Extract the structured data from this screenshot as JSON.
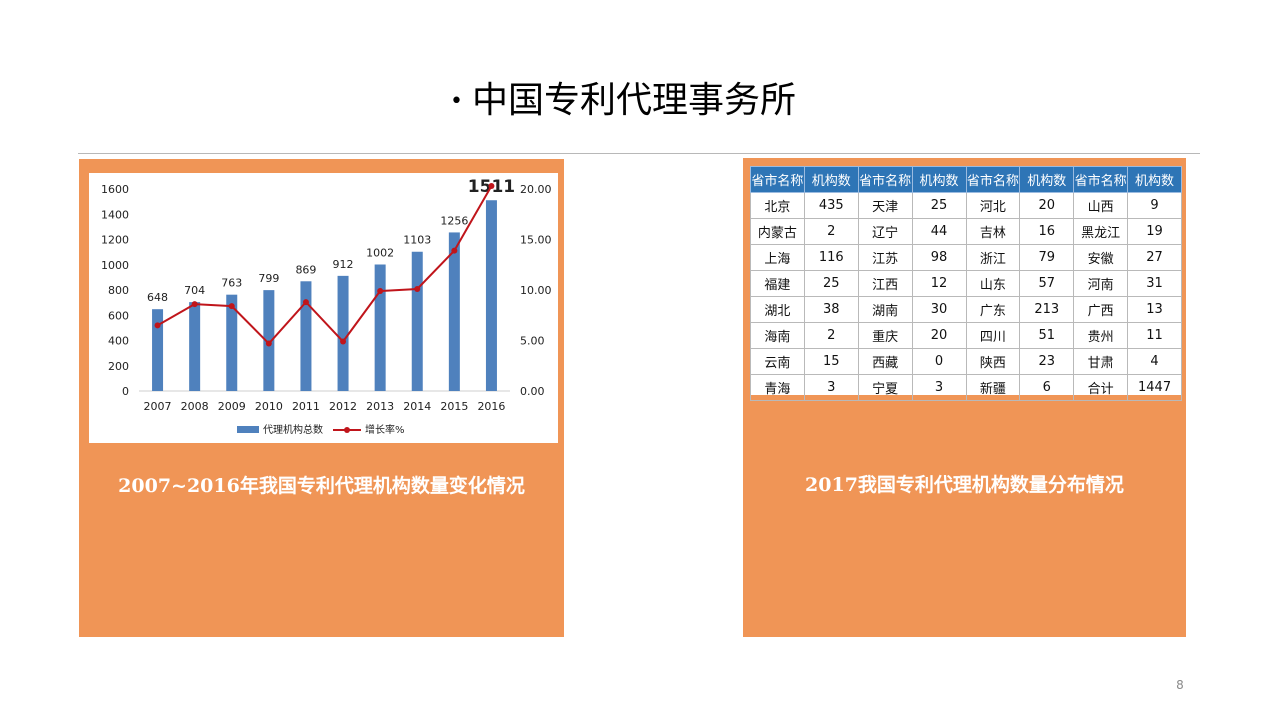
{
  "slide": {
    "bullet": "•",
    "title": "中国专利代理事务所",
    "page_number": "8"
  },
  "left_panel": {
    "caption": "2007~2016年我国专利代理机构数量变化情况"
  },
  "right_panel": {
    "caption": "2017我国专利代理机构数量分布情况"
  },
  "colors": {
    "panel": "#f09556",
    "bar": "#4f81bd",
    "line": "#c0151b",
    "table_header": "#2e75b6"
  },
  "chart_data": [
    {
      "type": "bar+line",
      "title": "",
      "categories": [
        "2007",
        "2008",
        "2009",
        "2010",
        "2011",
        "2012",
        "2013",
        "2014",
        "2015",
        "2016"
      ],
      "series": [
        {
          "name": "代理机构总数",
          "type": "bar",
          "axis": "left",
          "values": [
            648,
            704,
            763,
            799,
            869,
            912,
            1002,
            1103,
            1256,
            1511
          ],
          "labels": [
            "648",
            "704",
            "763",
            "799",
            "869",
            "912",
            "1002",
            "1103",
            "1256",
            "1511"
          ]
        },
        {
          "name": "增长率%",
          "type": "line",
          "axis": "right",
          "values": [
            6.5,
            8.6,
            8.4,
            4.7,
            8.8,
            4.9,
            9.9,
            10.1,
            13.9,
            20.3
          ]
        }
      ],
      "y_left": {
        "ylim": [
          0,
          1600
        ],
        "ticks": [
          "0",
          "200",
          "400",
          "600",
          "800",
          "1000",
          "1200",
          "1400",
          "1600"
        ]
      },
      "y_right": {
        "ylim": [
          0,
          20
        ],
        "ticks": [
          "0.00",
          "5.00",
          "10.00",
          "15.00",
          "20.00"
        ]
      },
      "legend": "bottom",
      "grid": false
    },
    {
      "type": "table",
      "headers": [
        "省市名称",
        "机构数",
        "省市名称",
        "机构数",
        "省市名称",
        "机构数",
        "省市名称",
        "机构数"
      ],
      "rows": [
        [
          "北京",
          "435",
          "天津",
          "25",
          "河北",
          "20",
          "山西",
          "9"
        ],
        [
          "内蒙古",
          "2",
          "辽宁",
          "44",
          "吉林",
          "16",
          "黑龙江",
          "19"
        ],
        [
          "上海",
          "116",
          "江苏",
          "98",
          "浙江",
          "79",
          "安徽",
          "27"
        ],
        [
          "福建",
          "25",
          "江西",
          "12",
          "山东",
          "57",
          "河南",
          "31"
        ],
        [
          "湖北",
          "38",
          "湖南",
          "30",
          "广东",
          "213",
          "广西",
          "13"
        ],
        [
          "海南",
          "2",
          "重庆",
          "20",
          "四川",
          "51",
          "贵州",
          "11"
        ],
        [
          "云南",
          "15",
          "西藏",
          "0",
          "陕西",
          "23",
          "甘肃",
          "4"
        ],
        [
          "青海",
          "3",
          "宁夏",
          "3",
          "新疆",
          "6",
          "合计",
          "1447"
        ]
      ]
    }
  ]
}
